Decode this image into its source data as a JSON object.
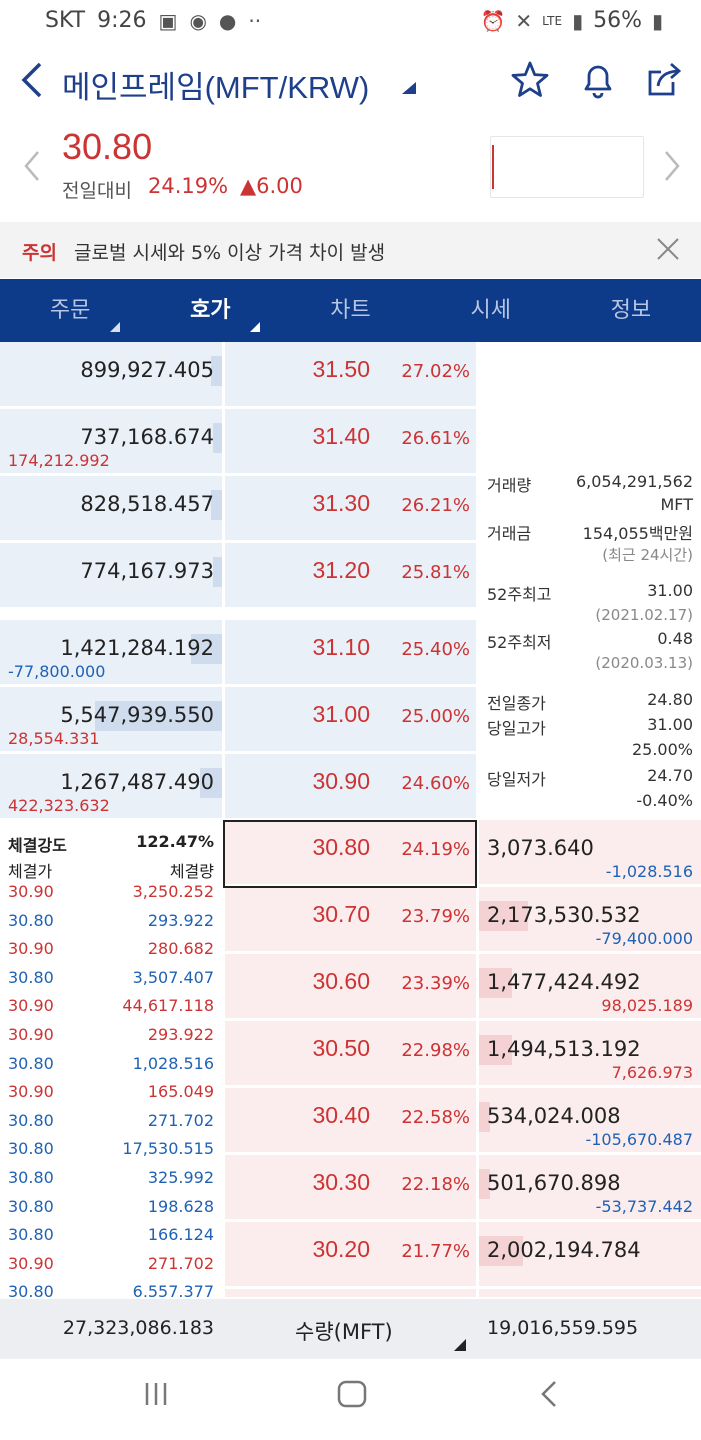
{
  "status": {
    "carrier": "SKT",
    "time": "9:26",
    "battery": "56%",
    "network": "LTE"
  },
  "header": {
    "title": "메인프레임(MFT/KRW)"
  },
  "price": {
    "current": "30.80",
    "diff_label": "전일대비",
    "diff_pct": "24.19%",
    "diff_amt": "▲6.00"
  },
  "warning": {
    "tag": "주의",
    "text": "글로벌 시세와 5% 이상 가격 차이 발생"
  },
  "tabs": [
    {
      "label": "주문"
    },
    {
      "label": "호가"
    },
    {
      "label": "차트"
    },
    {
      "label": "시세"
    },
    {
      "label": "정보"
    }
  ],
  "asks": [
    {
      "qty": "899,927.405",
      "change": "",
      "price": "31.50",
      "pct": "27.02%",
      "bar": 0.05
    },
    {
      "qty": "737,168.674",
      "change": "174,212.992",
      "price": "31.40",
      "pct": "26.61%",
      "bar": 0.04
    },
    {
      "qty": "828,518.457",
      "change": "",
      "price": "31.30",
      "pct": "26.21%",
      "bar": 0.05
    },
    {
      "qty": "774,167.973",
      "change": "",
      "price": "31.20",
      "pct": "25.81%",
      "bar": 0.04
    },
    {
      "qty": "1,421,284.192",
      "change": "-77,800.000",
      "price": "31.10",
      "pct": "25.40%",
      "bar": 0.14
    },
    {
      "qty": "5,547,939.550",
      "change": "28,554.331",
      "price": "31.00",
      "pct": "25.00%",
      "bar": 0.57
    },
    {
      "qty": "1,267,487.490",
      "change": "422,323.632",
      "price": "30.90",
      "pct": "24.60%",
      "bar": 0.1
    }
  ],
  "bids": [
    {
      "qty": "3,073.640",
      "change": "-1,028.516",
      "price": "30.80",
      "pct": "24.19%",
      "bar": 0.0
    },
    {
      "qty": "2,173,530.532",
      "change": "-79,400.000",
      "price": "30.70",
      "pct": "23.79%",
      "bar": 0.22
    },
    {
      "qty": "1,477,424.492",
      "change": "98,025.189",
      "price": "30.60",
      "pct": "23.39%",
      "bar": 0.15
    },
    {
      "qty": "1,494,513.192",
      "change": "7,626.973",
      "price": "30.50",
      "pct": "22.98%",
      "bar": 0.15
    },
    {
      "qty": "534,024.008",
      "change": "-105,670.487",
      "price": "30.40",
      "pct": "22.58%",
      "bar": 0.05
    },
    {
      "qty": "501,670.898",
      "change": "-53,737.442",
      "price": "30.30",
      "pct": "22.18%",
      "bar": 0.05
    },
    {
      "qty": "2,002,194.784",
      "change": "",
      "price": "30.20",
      "pct": "21.77%",
      "bar": 0.2
    }
  ],
  "info": {
    "volume_label": "거래량",
    "volume_value": "6,054,291,562",
    "volume_unit": "MFT",
    "amount_label": "거래금",
    "amount_value": "154,055백만원",
    "amount_note": "(최근 24시간)",
    "high52_label": "52주최고",
    "high52_value": "31.00",
    "high52_date": "(2021.02.17)",
    "low52_label": "52주최저",
    "low52_value": "0.48",
    "low52_date": "(2020.03.13)",
    "prev_close_label": "전일종가",
    "prev_close_value": "24.80",
    "day_high_label": "당일고가",
    "day_high_value": "31.00",
    "day_high_pct": "25.00%",
    "day_low_label": "당일저가",
    "day_low_value": "24.70",
    "day_low_pct": "-0.40%"
  },
  "trades": {
    "strength_label": "체결강도",
    "strength_value": "122.47%",
    "price_header": "체결가",
    "qty_header": "체결량",
    "rows": [
      {
        "price": "30.90",
        "qty": "3,250.252",
        "side": "red"
      },
      {
        "price": "30.80",
        "qty": "293.922",
        "side": "blue"
      },
      {
        "price": "30.90",
        "qty": "280.682",
        "side": "red"
      },
      {
        "price": "30.80",
        "qty": "3,507.407",
        "side": "blue"
      },
      {
        "price": "30.90",
        "qty": "44,617.118",
        "side": "red"
      },
      {
        "price": "30.90",
        "qty": "293.922",
        "side": "red"
      },
      {
        "price": "30.80",
        "qty": "1,028.516",
        "side": "blue"
      },
      {
        "price": "30.90",
        "qty": "165.049",
        "side": "red"
      },
      {
        "price": "30.80",
        "qty": "271.702",
        "side": "blue"
      },
      {
        "price": "30.80",
        "qty": "17,530.515",
        "side": "blue"
      },
      {
        "price": "30.80",
        "qty": "325.992",
        "side": "blue"
      },
      {
        "price": "30.80",
        "qty": "198.628",
        "side": "blue"
      },
      {
        "price": "30.80",
        "qty": "166.124",
        "side": "blue"
      },
      {
        "price": "30.90",
        "qty": "271.702",
        "side": "red"
      },
      {
        "price": "30.80",
        "qty": "6,557.377",
        "side": "blue"
      }
    ]
  },
  "footer": {
    "ask_total": "27,323,086.183",
    "unit_label": "수량(MFT)",
    "bid_total": "19,016,559.595"
  },
  "colors": {
    "brand": "#0d3b8a",
    "up": "#cc3333",
    "down": "#1f62b5"
  }
}
